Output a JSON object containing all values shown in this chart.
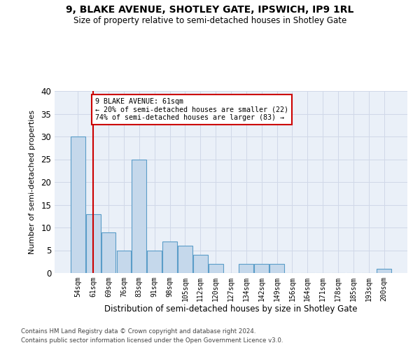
{
  "title1": "9, BLAKE AVENUE, SHOTLEY GATE, IPSWICH, IP9 1RL",
  "title2": "Size of property relative to semi-detached houses in Shotley Gate",
  "xlabel": "Distribution of semi-detached houses by size in Shotley Gate",
  "ylabel": "Number of semi-detached properties",
  "categories": [
    "54sqm",
    "61sqm",
    "69sqm",
    "76sqm",
    "83sqm",
    "91sqm",
    "98sqm",
    "105sqm",
    "112sqm",
    "120sqm",
    "127sqm",
    "134sqm",
    "142sqm",
    "149sqm",
    "156sqm",
    "164sqm",
    "171sqm",
    "178sqm",
    "185sqm",
    "193sqm",
    "200sqm"
  ],
  "values": [
    30,
    13,
    9,
    5,
    25,
    5,
    7,
    6,
    4,
    2,
    0,
    2,
    2,
    2,
    0,
    0,
    0,
    0,
    0,
    0,
    1
  ],
  "bar_color": "#c5d8eb",
  "bar_edge_color": "#5a9dc8",
  "property_index": 1,
  "annotation_title": "9 BLAKE AVENUE: 61sqm",
  "annotation_line1": "← 20% of semi-detached houses are smaller (22)",
  "annotation_line2": "74% of semi-detached houses are larger (83) →",
  "red_line_color": "#cc0000",
  "annotation_box_color": "#ffffff",
  "annotation_box_edge": "#cc0000",
  "footnote1": "Contains HM Land Registry data © Crown copyright and database right 2024.",
  "footnote2": "Contains public sector information licensed under the Open Government Licence v3.0.",
  "ylim": [
    0,
    40
  ],
  "yticks": [
    0,
    5,
    10,
    15,
    20,
    25,
    30,
    35,
    40
  ],
  "grid_color": "#d0d8e8",
  "background_color": "#eaf0f8"
}
